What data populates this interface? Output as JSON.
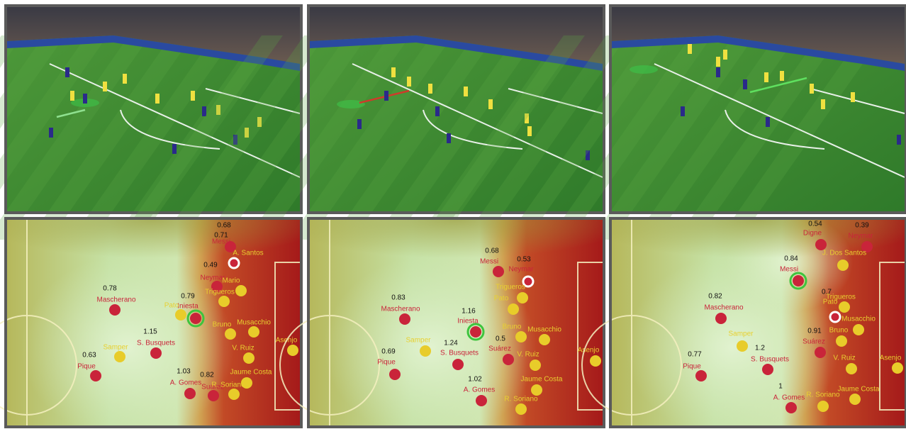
{
  "panels": [
    {
      "players": [
        {
          "name": "Messi",
          "value": "0.68"
        },
        {
          "name": "A. Santos",
          "value": "0.71"
        },
        {
          "name": "Neymar",
          "value": "0.49"
        },
        {
          "name": "Mario"
        },
        {
          "name": "Trigueros"
        },
        {
          "name": "Mascherano",
          "value": "0.78"
        },
        {
          "name": "Iniesta",
          "value": "0.79"
        },
        {
          "name": "Pato"
        },
        {
          "name": "Bruno"
        },
        {
          "name": "Musacchio"
        },
        {
          "name": "S. Busquets",
          "value": "1.15"
        },
        {
          "name": "V. Ruiz"
        },
        {
          "name": "Asenjo"
        },
        {
          "name": "Samper"
        },
        {
          "name": "Pique",
          "value": "0.63"
        },
        {
          "name": "A. Gomes",
          "value": "1.03"
        },
        {
          "name": "Suárez",
          "value": "0.82"
        },
        {
          "name": "R. Soriano"
        },
        {
          "name": "Jaume Costa"
        }
      ]
    },
    {
      "players": [
        {
          "name": "Messi",
          "value": "0.68"
        },
        {
          "name": "Neymar",
          "value": "0.53"
        },
        {
          "name": "Trigueros"
        },
        {
          "name": "Pato"
        },
        {
          "name": "Mascherano",
          "value": "0.83"
        },
        {
          "name": "Iniesta",
          "value": "1.16"
        },
        {
          "name": "Bruno"
        },
        {
          "name": "Musacchio"
        },
        {
          "name": "Samper"
        },
        {
          "name": "S. Busquets",
          "value": "1.24"
        },
        {
          "name": "Suárez",
          "value": "0.5"
        },
        {
          "name": "V. Ruiz"
        },
        {
          "name": "Asenjo"
        },
        {
          "name": "Pique",
          "value": "0.69"
        },
        {
          "name": "Jaume Costa"
        },
        {
          "name": "A. Gomes",
          "value": "1.02"
        },
        {
          "name": "R. Soriano"
        }
      ]
    },
    {
      "players": [
        {
          "name": "Digne",
          "value": "0.54"
        },
        {
          "name": "Neymar",
          "value": "0.39"
        },
        {
          "name": "J. Dos Santos"
        },
        {
          "name": "Messi",
          "value": "0.84"
        },
        {
          "name": "Trigueros"
        },
        {
          "name": "Pato",
          "value": "0.7"
        },
        {
          "name": "Mascherano",
          "value": "0.82"
        },
        {
          "name": "Musacchio"
        },
        {
          "name": "Bruno"
        },
        {
          "name": "Suárez",
          "value": "0.91"
        },
        {
          "name": "Samper"
        },
        {
          "name": "S. Busquets",
          "value": "1.2"
        },
        {
          "name": "V. Ruiz"
        },
        {
          "name": "Asenjo"
        },
        {
          "name": "Pique",
          "value": "0.77"
        },
        {
          "name": "A. Gomes",
          "value": "1"
        },
        {
          "name": "R. Soriano"
        },
        {
          "name": "Jaume Costa"
        }
      ]
    }
  ]
}
